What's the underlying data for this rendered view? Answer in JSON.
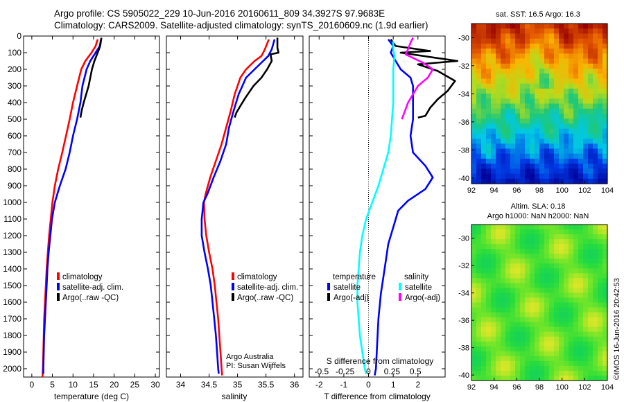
{
  "header": {
    "line1": "Argo profile: CS 5905022_229 10-Jun-2016 20160611_809 34.3927S 97.9683E",
    "line2": "Climatology: CARS2009. Satellite-adjusted climatology: synTS_20160609.nc (1.9d earlier)"
  },
  "credit": "©IMOS 16-Jun-2016 20:42:53",
  "colors": {
    "climatology": "#ff0000",
    "satellite": "#0000ff",
    "argo": "#000000",
    "salinity_satellite": "#00ffff",
    "salinity_argo": "#ff00ff"
  },
  "chart_data": [
    {
      "type": "line",
      "id": "temperature",
      "xlabel": "temperature (deg C)",
      "xlim": [
        -2,
        31
      ],
      "xticks": [
        "0",
        "5",
        "10",
        "15",
        "20",
        "25",
        "30"
      ],
      "xtick_values": [
        0,
        5,
        10,
        15,
        20,
        25,
        30
      ],
      "ylim": [
        2050,
        0
      ],
      "yticks": [
        "0",
        "100",
        "200",
        "300",
        "400",
        "500",
        "600",
        "700",
        "800",
        "900",
        "1000",
        "1100",
        "1200",
        "1300",
        "1400",
        "1500",
        "1600",
        "1700",
        "1800",
        "1900",
        "2000"
      ],
      "ytick_values": [
        0,
        100,
        200,
        300,
        400,
        500,
        600,
        700,
        800,
        900,
        1000,
        1100,
        1200,
        1300,
        1400,
        1500,
        1600,
        1700,
        1800,
        1900,
        2000
      ],
      "legend": [
        "climatology",
        "satellite-adj. clim.",
        "Argo(..raw -QC)"
      ],
      "series": [
        {
          "name": "climatology",
          "color": "#ff0000",
          "points": [
            [
              16,
              20
            ],
            [
              15.5,
              60
            ],
            [
              14.5,
              100
            ],
            [
              13,
              150
            ],
            [
              12,
              200
            ],
            [
              11,
              300
            ],
            [
              10,
              400
            ],
            [
              9.2,
              500
            ],
            [
              8.3,
              600
            ],
            [
              7.4,
              700
            ],
            [
              6.4,
              800
            ],
            [
              5.6,
              900
            ],
            [
              5,
              1000
            ],
            [
              4.6,
              1100
            ],
            [
              4.2,
              1200
            ],
            [
              3.9,
              1300
            ],
            [
              3.6,
              1400
            ],
            [
              3.4,
              1500
            ],
            [
              3.2,
              1600
            ],
            [
              3,
              1700
            ],
            [
              2.9,
              1800
            ],
            [
              2.8,
              1900
            ],
            [
              2.7,
              2000
            ],
            [
              2.6,
              2050
            ]
          ]
        },
        {
          "name": "satellite-adj. clim.",
          "color": "#0000ff",
          "points": [
            [
              16.8,
              20
            ],
            [
              16.5,
              60
            ],
            [
              15.5,
              100
            ],
            [
              14.2,
              150
            ],
            [
              13.3,
              200
            ],
            [
              12.8,
              250
            ],
            [
              12.3,
              300
            ],
            [
              11.8,
              400
            ],
            [
              11,
              500
            ],
            [
              10,
              600
            ],
            [
              9.2,
              700
            ],
            [
              8.2,
              800
            ],
            [
              6.8,
              900
            ],
            [
              5.6,
              1000
            ],
            [
              4.9,
              1100
            ],
            [
              4.5,
              1200
            ],
            [
              4.1,
              1300
            ],
            [
              3.8,
              1400
            ],
            [
              3.6,
              1500
            ],
            [
              3.4,
              1600
            ],
            [
              3.2,
              1700
            ],
            [
              3,
              1800
            ],
            [
              2.9,
              1900
            ],
            [
              2.8,
              2000
            ],
            [
              2.8,
              2030
            ]
          ]
        },
        {
          "name": "Argo(..raw -QC)",
          "color": "#000000",
          "points": [
            [
              16.9,
              10
            ],
            [
              16.6,
              60
            ],
            [
              16,
              100
            ],
            [
              15.2,
              150
            ],
            [
              14.6,
              200
            ],
            [
              14.2,
              250
            ],
            [
              13.8,
              300
            ],
            [
              13.2,
              350
            ],
            [
              12.6,
              400
            ],
            [
              12.1,
              450
            ],
            [
              11.8,
              490
            ]
          ]
        }
      ]
    },
    {
      "type": "line",
      "id": "salinity",
      "xlabel": "salinity",
      "xlim": [
        33.75,
        36.15
      ],
      "xticks": [
        "34",
        "34.5",
        "35",
        "35.5",
        "36"
      ],
      "xtick_values": [
        34,
        34.5,
        35,
        35.5,
        36
      ],
      "ylim": [
        2050,
        0
      ],
      "legend": [
        "climatology",
        "satellite-adj. clim.",
        "Argo(..raw -QC)"
      ],
      "annotation": [
        "Argo Australia",
        "PI: Susan Wijffels"
      ],
      "series": [
        {
          "name": "climatology",
          "color": "#ff0000",
          "points": [
            [
              35.55,
              20
            ],
            [
              35.48,
              80
            ],
            [
              35.42,
              120
            ],
            [
              35.3,
              150
            ],
            [
              35.15,
              200
            ],
            [
              35.05,
              250
            ],
            [
              34.95,
              350
            ],
            [
              34.88,
              450
            ],
            [
              34.8,
              550
            ],
            [
              34.72,
              650
            ],
            [
              34.62,
              750
            ],
            [
              34.52,
              850
            ],
            [
              34.44,
              950
            ],
            [
              34.41,
              1000
            ],
            [
              34.42,
              1100
            ],
            [
              34.45,
              1200
            ],
            [
              34.5,
              1300
            ],
            [
              34.56,
              1400
            ],
            [
              34.6,
              1500
            ],
            [
              34.63,
              1600
            ],
            [
              34.66,
              1700
            ],
            [
              34.68,
              1800
            ],
            [
              34.7,
              1900
            ],
            [
              34.72,
              2000
            ],
            [
              34.73,
              2040
            ]
          ]
        },
        {
          "name": "satellite-adj. clim.",
          "color": "#0000ff",
          "points": [
            [
              35.65,
              20
            ],
            [
              35.6,
              80
            ],
            [
              35.54,
              120
            ],
            [
              35.45,
              150
            ],
            [
              35.3,
              200
            ],
            [
              35.15,
              250
            ],
            [
              35.02,
              350
            ],
            [
              34.93,
              450
            ],
            [
              34.85,
              550
            ],
            [
              34.8,
              650
            ],
            [
              34.7,
              750
            ],
            [
              34.58,
              850
            ],
            [
              34.47,
              950
            ],
            [
              34.4,
              1000
            ],
            [
              34.37,
              1100
            ],
            [
              34.37,
              1200
            ],
            [
              34.42,
              1300
            ],
            [
              34.48,
              1400
            ],
            [
              34.53,
              1500
            ],
            [
              34.56,
              1600
            ],
            [
              34.59,
              1700
            ],
            [
              34.62,
              1800
            ],
            [
              34.64,
              1900
            ],
            [
              34.66,
              2000
            ],
            [
              34.67,
              2030
            ]
          ]
        },
        {
          "name": "Argo(..raw -QC)",
          "color": "#000000",
          "points": [
            [
              35.7,
              10
            ],
            [
              35.7,
              70
            ],
            [
              35.72,
              100
            ],
            [
              35.58,
              110
            ],
            [
              35.6,
              150
            ],
            [
              35.52,
              200
            ],
            [
              35.42,
              250
            ],
            [
              35.28,
              300
            ],
            [
              35.14,
              370
            ],
            [
              35.05,
              420
            ],
            [
              34.98,
              460
            ],
            [
              34.95,
              490
            ]
          ]
        }
      ]
    },
    {
      "type": "line",
      "id": "difference",
      "xlabel": "T difference from climatology",
      "xlim": [
        -2.4,
        3.1
      ],
      "xticks": [
        "-2",
        "-1",
        "0",
        "1",
        "2"
      ],
      "xtick_values": [
        -2,
        -1,
        0,
        1,
        2
      ],
      "top_xlabel": "S difference from climatology",
      "top_xticks": [
        "-0.5",
        "-0.25",
        "0",
        "0.25",
        "0.5"
      ],
      "top_xtick_t": [
        -1.9,
        -0.95,
        0,
        0.95,
        1.9
      ],
      "ylim": [
        2050,
        0
      ],
      "legend_titles": [
        "temperature",
        "salinity"
      ],
      "legend": [
        "satellite",
        "Argo(-adj)",
        "satellite",
        "Argo(-adj)"
      ],
      "series": [
        {
          "name": "temperature satellite",
          "color": "#0000ff",
          "points": [
            [
              0.8,
              20
            ],
            [
              1,
              60
            ],
            [
              0.9,
              100
            ],
            [
              1.1,
              150
            ],
            [
              1.3,
              200
            ],
            [
              1.7,
              250
            ],
            [
              1.8,
              300
            ],
            [
              1.8,
              400
            ],
            [
              1.8,
              500
            ],
            [
              1.7,
              600
            ],
            [
              1.8,
              700
            ],
            [
              2.3,
              780
            ],
            [
              2.6,
              850
            ],
            [
              2.3,
              920
            ],
            [
              1.6,
              990
            ],
            [
              1.2,
              1050
            ],
            [
              1,
              1150
            ],
            [
              0.8,
              1250
            ],
            [
              0.7,
              1350
            ],
            [
              0.6,
              1450
            ],
            [
              0.5,
              1550
            ],
            [
              0.4,
              1700
            ],
            [
              0.35,
              1850
            ],
            [
              0.3,
              2000
            ],
            [
              0.25,
              2040
            ]
          ]
        },
        {
          "name": "temperature Argo(-adj)",
          "color": "#000000",
          "points": [
            [
              0.9,
              20
            ],
            [
              1.1,
              60
            ],
            [
              2.5,
              90
            ],
            [
              1.3,
              100
            ],
            [
              3.6,
              150
            ],
            [
              2,
              170
            ],
            [
              2.8,
              210
            ],
            [
              3.5,
              270
            ],
            [
              3.2,
              330
            ],
            [
              2.8,
              380
            ],
            [
              2.5,
              430
            ],
            [
              2.3,
              480
            ],
            [
              2,
              490
            ]
          ]
        },
        {
          "name": "salinity satellite",
          "color": "#00ffff",
          "points": [
            [
              1,
              30
            ],
            [
              1,
              80
            ],
            [
              1.05,
              120
            ],
            [
              1,
              200
            ],
            [
              1,
              300
            ],
            [
              1,
              400
            ],
            [
              0.95,
              500
            ],
            [
              0.9,
              600
            ],
            [
              0.8,
              700
            ],
            [
              0.6,
              800
            ],
            [
              0.4,
              900
            ],
            [
              0.15,
              1000
            ],
            [
              -0.1,
              1100
            ],
            [
              -0.25,
              1200
            ],
            [
              -0.35,
              1300
            ],
            [
              -0.4,
              1400
            ],
            [
              -0.45,
              1500
            ],
            [
              -0.45,
              1600
            ],
            [
              -0.4,
              1700
            ],
            [
              -0.35,
              1800
            ],
            [
              -0.25,
              1900
            ],
            [
              -0.15,
              2000
            ],
            [
              -0.1,
              2030
            ]
          ]
        },
        {
          "name": "salinity Argo(-adj)",
          "color": "#ff00ff",
          "points": [
            [
              1.8,
              10
            ],
            [
              1.7,
              40
            ],
            [
              1.6,
              80
            ],
            [
              1.5,
              110
            ],
            [
              2.2,
              160
            ],
            [
              2.6,
              200
            ],
            [
              2.4,
              250
            ],
            [
              2,
              300
            ],
            [
              1.8,
              350
            ],
            [
              1.6,
              400
            ],
            [
              1.45,
              460
            ],
            [
              1.35,
              500
            ]
          ]
        }
      ]
    },
    {
      "type": "heatmap",
      "id": "sst",
      "title": "sat. SST: 16.5 Argo: 16.3",
      "xlim": [
        92,
        104
      ],
      "ylim": [
        -40.4,
        -29
      ],
      "xticks": [
        "92",
        "94",
        "96",
        "98",
        "100",
        "102",
        "104"
      ],
      "xtick_values": [
        92,
        94,
        96,
        98,
        100,
        102,
        104
      ],
      "yticks": [
        "-30",
        "-32",
        "-34",
        "-36",
        "-38",
        "-40"
      ],
      "ytick_values": [
        -30,
        -32,
        -34,
        -36,
        -38,
        -40
      ]
    },
    {
      "type": "heatmap",
      "id": "sla",
      "title": "Altim. SLA: 0.18",
      "subtitle": "Argo h1000: NaN h2000: NaN",
      "xlim": [
        92,
        104
      ],
      "ylim": [
        -40.4,
        -29
      ],
      "xticks": [
        "92",
        "94",
        "96",
        "98",
        "100",
        "102",
        "104"
      ],
      "xtick_values": [
        92,
        94,
        96,
        98,
        100,
        102,
        104
      ],
      "yticks": [
        "-30",
        "-32",
        "-34",
        "-36",
        "-38",
        "-40"
      ],
      "ytick_values": [
        -30,
        -32,
        -34,
        -36,
        -38,
        -40
      ]
    }
  ]
}
